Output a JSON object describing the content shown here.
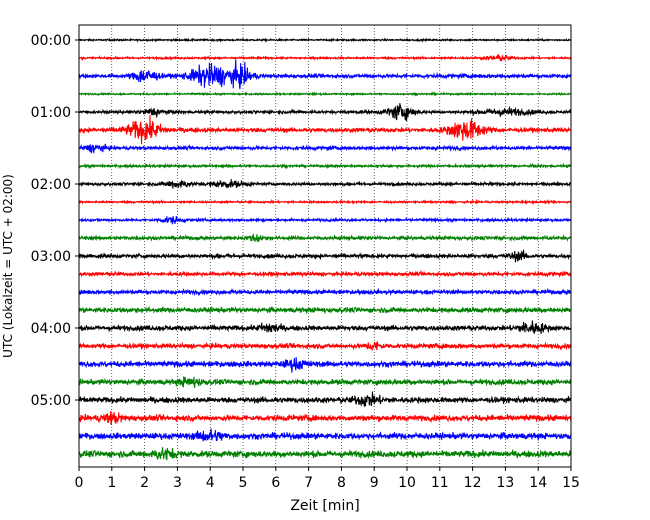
{
  "chart_data": {
    "type": "line",
    "xlabel": "Zeit  [min]",
    "ylabel": "UTC (Lokalzeit = UTC + 02:00)",
    "xlim": [
      0,
      15
    ],
    "x_ticks": [
      "0",
      "1",
      "2",
      "3",
      "4",
      "5",
      "6",
      "7",
      "8",
      "9",
      "10",
      "11",
      "12",
      "13",
      "14",
      "15"
    ],
    "y_tick_labels": [
      "00:00",
      "01:00",
      "02:00",
      "03:00",
      "04:00",
      "05:00"
    ],
    "trace_interval_minutes": 15,
    "trace_count": 24,
    "trace_colors": [
      "#000000",
      "#ff0000",
      "#0000ff",
      "#008000"
    ],
    "grid": "vertical-dotted",
    "traces": [
      {
        "start": "00:00",
        "color": "#000000",
        "amplitude": 0.1,
        "events": []
      },
      {
        "start": "00:15",
        "color": "#ff0000",
        "amplitude": 0.12,
        "events": [
          {
            "t": 12.8,
            "amp": 0.35,
            "width": 0.4
          }
        ]
      },
      {
        "start": "00:30",
        "color": "#0000ff",
        "amplitude": 0.25,
        "events": [
          {
            "t": 2.0,
            "amp": 0.9,
            "width": 0.35
          },
          {
            "t": 4.0,
            "amp": 1.4,
            "width": 0.6
          },
          {
            "t": 4.9,
            "amp": 1.2,
            "width": 0.35
          }
        ]
      },
      {
        "start": "00:45",
        "color": "#008000",
        "amplitude": 0.1,
        "events": []
      },
      {
        "start": "01:00",
        "color": "#000000",
        "amplitude": 0.18,
        "events": [
          {
            "t": 2.3,
            "amp": 0.5,
            "width": 0.3
          },
          {
            "t": 9.8,
            "amp": 1.0,
            "width": 0.4
          },
          {
            "t": 13.0,
            "amp": 0.4,
            "width": 0.8
          }
        ]
      },
      {
        "start": "01:15",
        "color": "#ff0000",
        "amplitude": 0.28,
        "events": [
          {
            "t": 2.0,
            "amp": 1.3,
            "width": 0.5
          },
          {
            "t": 11.8,
            "amp": 1.3,
            "width": 0.5
          }
        ]
      },
      {
        "start": "01:30",
        "color": "#0000ff",
        "amplitude": 0.22,
        "events": [
          {
            "t": 0.5,
            "amp": 0.5,
            "width": 0.3
          }
        ]
      },
      {
        "start": "01:45",
        "color": "#008000",
        "amplitude": 0.15,
        "events": []
      },
      {
        "start": "02:00",
        "color": "#000000",
        "amplitude": 0.18,
        "events": [
          {
            "t": 3.0,
            "amp": 0.45,
            "width": 0.4
          },
          {
            "t": 4.5,
            "amp": 0.4,
            "width": 0.5
          }
        ]
      },
      {
        "start": "02:15",
        "color": "#ff0000",
        "amplitude": 0.12,
        "events": []
      },
      {
        "start": "02:30",
        "color": "#0000ff",
        "amplitude": 0.15,
        "events": [
          {
            "t": 2.8,
            "amp": 0.45,
            "width": 0.3
          }
        ]
      },
      {
        "start": "02:45",
        "color": "#008000",
        "amplitude": 0.22,
        "events": [
          {
            "t": 5.4,
            "amp": 0.5,
            "width": 0.2
          }
        ]
      },
      {
        "start": "03:00",
        "color": "#000000",
        "amplitude": 0.24,
        "events": [
          {
            "t": 13.4,
            "amp": 0.5,
            "width": 0.3
          }
        ]
      },
      {
        "start": "03:15",
        "color": "#ff0000",
        "amplitude": 0.24,
        "events": []
      },
      {
        "start": "03:30",
        "color": "#0000ff",
        "amplitude": 0.26,
        "events": []
      },
      {
        "start": "03:45",
        "color": "#008000",
        "amplitude": 0.32,
        "events": []
      },
      {
        "start": "04:00",
        "color": "#000000",
        "amplitude": 0.32,
        "events": [
          {
            "t": 5.8,
            "amp": 0.6,
            "width": 0.3
          },
          {
            "t": 13.8,
            "amp": 0.7,
            "width": 0.4
          }
        ]
      },
      {
        "start": "04:15",
        "color": "#ff0000",
        "amplitude": 0.3,
        "events": [
          {
            "t": 9.0,
            "amp": 0.55,
            "width": 0.2
          }
        ]
      },
      {
        "start": "04:30",
        "color": "#0000ff",
        "amplitude": 0.36,
        "events": [
          {
            "t": 6.6,
            "amp": 0.6,
            "width": 0.3
          }
        ]
      },
      {
        "start": "04:45",
        "color": "#008000",
        "amplitude": 0.34,
        "events": [
          {
            "t": 3.4,
            "amp": 0.55,
            "width": 0.3
          }
        ]
      },
      {
        "start": "05:00",
        "color": "#000000",
        "amplitude": 0.36,
        "events": [
          {
            "t": 8.8,
            "amp": 0.6,
            "width": 0.4
          }
        ]
      },
      {
        "start": "05:15",
        "color": "#ff0000",
        "amplitude": 0.38,
        "events": [
          {
            "t": 1.0,
            "amp": 0.55,
            "width": 0.3
          }
        ]
      },
      {
        "start": "05:30",
        "color": "#0000ff",
        "amplitude": 0.4,
        "events": [
          {
            "t": 4.0,
            "amp": 0.6,
            "width": 0.4
          }
        ]
      },
      {
        "start": "05:45",
        "color": "#008000",
        "amplitude": 0.42,
        "events": [
          {
            "t": 2.6,
            "amp": 0.6,
            "width": 0.3
          }
        ]
      }
    ]
  }
}
